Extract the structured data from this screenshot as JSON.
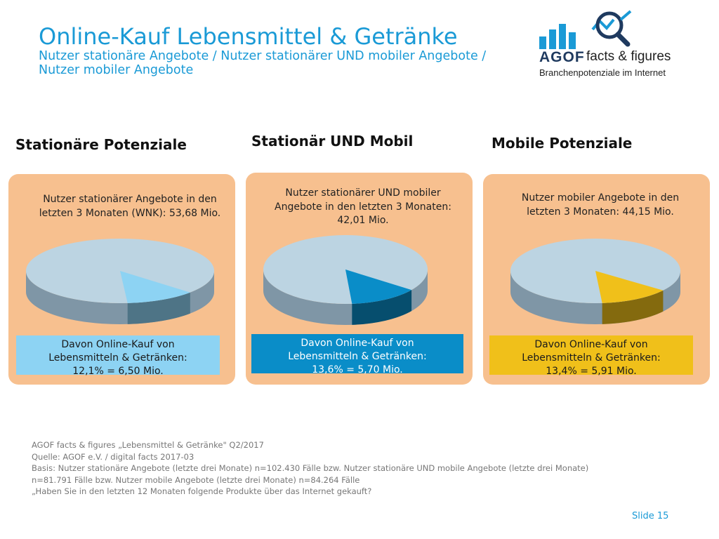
{
  "header": {
    "title": "Online-Kauf Lebensmittel & Getränke",
    "subtitle_line1": "Nutzer stationäre Angebote / Nutzer stationärer UND mobiler Angebote /",
    "subtitle_line2": "Nutzer mobiler Angebote"
  },
  "logo": {
    "brand": "AGOF",
    "product": "facts & figures",
    "tagline": "Branchenpotenziale im Internet",
    "icons": [
      "bar-chart-icon",
      "magnifier-icon"
    ]
  },
  "colors": {
    "title": "#1a9ad6",
    "panel_bg": "#f7c08f",
    "pie_rest": "#bcd4e2",
    "stationaer": "#8dd3f3",
    "beide": "#0a8dc8",
    "mobil": "#f0c01a"
  },
  "chart_data": [
    {
      "type": "pie",
      "title": "Stationäre Potenziale",
      "description": [
        "Nutzer stationärer Angebote in den",
        "letzten 3 Monaten (WNK): 53,68 Mio."
      ],
      "slice_label": [
        "Davon Online-Kauf von",
        "Lebensmitteln & Getränken:",
        "12,1% = 6,50 Mio."
      ],
      "total_mio": 53.68,
      "slice_percent": 12.1,
      "slice_mio": 6.5,
      "color": "#8dd3f3"
    },
    {
      "type": "pie",
      "title": "Stationär UND Mobil",
      "description": [
        "Nutzer stationärer UND mobiler",
        "Angebote in den letzten 3 Monaten:",
        "42,01 Mio."
      ],
      "slice_label": [
        "Davon Online-Kauf von",
        "Lebensmitteln & Getränken:",
        "13,6% = 5,70 Mio."
      ],
      "total_mio": 42.01,
      "slice_percent": 13.6,
      "slice_mio": 5.7,
      "color": "#0a8dc8"
    },
    {
      "type": "pie",
      "title": "Mobile Potenziale",
      "description": [
        "Nutzer mobiler Angebote in den",
        "letzten 3 Monaten: 44,15 Mio."
      ],
      "slice_label": [
        "Davon Online-Kauf von",
        "Lebensmitteln & Getränken:",
        "13,4% = 5,91 Mio."
      ],
      "total_mio": 44.15,
      "slice_percent": 13.4,
      "slice_mio": 5.91,
      "color": "#f0c01a"
    }
  ],
  "footer": {
    "lines": [
      "AGOF facts & figures „Lebensmittel & Getränke\" Q2/2017",
      "Quelle: AGOF e.V. / digital facts 2017-03",
      "Basis: Nutzer stationäre Angebote (letzte drei Monate) n=102.430 Fälle bzw. Nutzer stationäre UND mobile Angebote (letzte drei Monate)",
      "n=81.791 Fälle bzw. Nutzer mobile Angebote (letzte drei Monate) n=84.264 Fälle",
      "„Haben Sie in den letzten 12 Monaten folgende Produkte über das Internet gekauft?"
    ]
  },
  "slide_number": "Slide 15"
}
